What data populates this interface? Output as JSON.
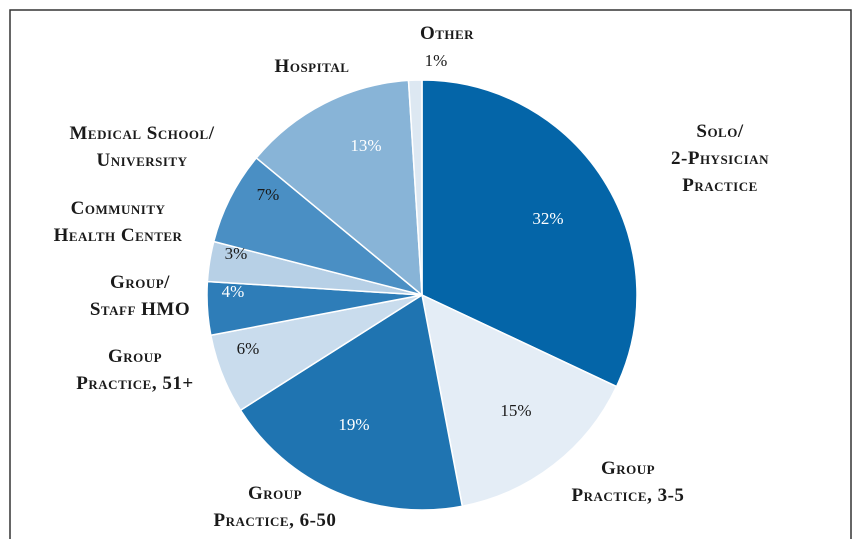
{
  "chart_data": {
    "type": "pie",
    "categories": [
      [
        "Solo/",
        "2-Physician",
        "Practice"
      ],
      [
        "Group",
        "Practice, 3-5"
      ],
      [
        "Group",
        "Practice, 6-50"
      ],
      [
        "Group",
        "Practice, 51+"
      ],
      [
        "Group/",
        "Staff HMO"
      ],
      [
        "Community",
        "Health Center"
      ],
      [
        "Medical School/",
        "University"
      ],
      [
        "Hospital"
      ],
      [
        "Other"
      ]
    ],
    "values": [
      32,
      15,
      19,
      6,
      4,
      3,
      7,
      13,
      1
    ],
    "value_labels": [
      "32%",
      "15%",
      "19%",
      "6%",
      "4%",
      "3%",
      "7%",
      "13%",
      "1%"
    ],
    "colors": [
      "#0465a8",
      "#e4edf6",
      "#1f74b1",
      "#c9dced",
      "#2e7db8",
      "#b7d0e6",
      "#4a8fc4",
      "#88b4d7",
      "#dde8f2"
    ]
  }
}
